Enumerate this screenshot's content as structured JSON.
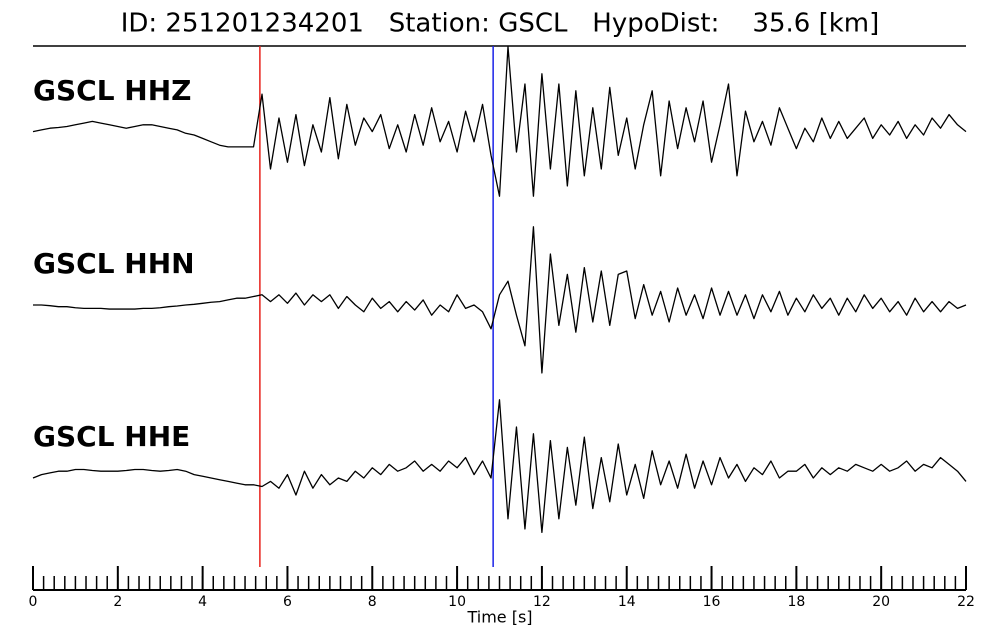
{
  "chart_data": {
    "type": "seismogram",
    "title": "ID: 251201234201   Station: GSCL   HypoDist:    35.6 [km]",
    "xlabel": "Time [s]",
    "xlim": [
      0,
      22
    ],
    "xticks": [
      0,
      2,
      4,
      6,
      8,
      10,
      12,
      14,
      16,
      18,
      20,
      22
    ],
    "xminorticks": [
      0,
      0.25,
      0.5,
      0.75,
      1,
      1.25,
      1.5,
      1.75,
      2,
      2.25,
      2.5,
      2.75,
      3,
      3.25,
      3.5,
      3.75,
      4,
      4.25,
      4.5,
      4.75,
      5,
      5.25,
      5.5,
      5.75,
      6,
      6.25,
      6.5,
      6.75,
      7,
      7.25,
      7.5,
      7.75,
      8,
      8.25,
      8.5,
      8.75,
      9,
      9.25,
      9.5,
      9.75,
      10,
      10.25,
      10.5,
      10.75,
      11,
      11.25,
      11.5,
      11.75,
      12,
      12.25,
      12.5,
      12.75,
      13,
      13.25,
      13.5,
      13.75,
      14,
      14.25,
      14.5,
      14.75,
      15,
      15.25,
      15.5,
      15.75,
      16,
      16.25,
      16.5,
      16.75,
      17,
      17.25,
      17.5,
      17.75,
      18,
      18.25,
      18.5,
      18.75,
      19,
      19.25,
      19.5,
      19.75,
      20,
      20.25,
      20.5,
      20.75,
      21,
      21.25,
      21.5,
      21.75,
      22
    ],
    "ylim": [
      -2.5,
      2.5
    ],
    "picks": [
      {
        "time": 5.35,
        "color": "#e8221b"
      },
      {
        "time": 10.85,
        "color": "#1b22e8"
      }
    ],
    "label_color": "#4a9a08",
    "x": [
      0,
      0.2,
      0.4,
      0.6,
      0.8,
      1,
      1.2,
      1.4,
      1.6,
      1.8,
      2,
      2.2,
      2.4,
      2.6,
      2.8,
      3,
      3.2,
      3.4,
      3.6,
      3.8,
      4,
      4.2,
      4.4,
      4.6,
      4.8,
      5,
      5.2,
      5.4,
      5.6,
      5.8,
      6,
      6.2,
      6.4,
      6.6,
      6.8,
      7,
      7.2,
      7.4,
      7.6,
      7.8,
      8,
      8.2,
      8.4,
      8.6,
      8.8,
      9,
      9.2,
      9.4,
      9.6,
      9.8,
      10,
      10.2,
      10.4,
      10.6,
      10.8,
      11,
      11.2,
      11.4,
      11.6,
      11.8,
      12,
      12.2,
      12.4,
      12.6,
      12.8,
      13,
      13.2,
      13.4,
      13.6,
      13.8,
      14,
      14.2,
      14.4,
      14.6,
      14.8,
      15,
      15.2,
      15.4,
      15.6,
      15.8,
      16,
      16.2,
      16.4,
      16.6,
      16.8,
      17,
      17.2,
      17.4,
      17.6,
      17.8,
      18,
      18.2,
      18.4,
      18.6,
      18.8,
      19,
      19.2,
      19.4,
      19.6,
      19.8,
      20,
      20.2,
      20.4,
      20.6,
      20.8,
      21,
      21.2,
      21.4,
      21.6,
      21.8,
      22
    ],
    "series": [
      {
        "name": "GSCL HHZ",
        "color": "#000000",
        "values": [
          0.1,
          0.15,
          0.2,
          0.22,
          0.25,
          0.3,
          0.35,
          0.4,
          0.35,
          0.3,
          0.25,
          0.2,
          0.25,
          0.3,
          0.3,
          0.25,
          0.2,
          0.15,
          0.05,
          0,
          -0.1,
          -0.2,
          -0.3,
          -0.35,
          -0.35,
          -0.35,
          -0.35,
          1.2,
          -1.0,
          0.5,
          -0.8,
          0.6,
          -0.9,
          0.3,
          -0.5,
          1.1,
          -0.7,
          0.9,
          -0.3,
          0.5,
          0.1,
          0.6,
          -0.4,
          0.3,
          -0.5,
          0.6,
          -0.3,
          0.8,
          -0.2,
          0.4,
          -0.5,
          0.7,
          -0.2,
          0.9,
          -0.6,
          -1.8,
          2.6,
          -0.5,
          1.5,
          -1.8,
          1.8,
          -1.0,
          1.5,
          -1.5,
          1.3,
          -1.2,
          0.8,
          -1.0,
          1.4,
          -0.6,
          0.5,
          -1.0,
          0.3,
          1.3,
          -1.2,
          1.0,
          -0.4,
          0.8,
          -0.2,
          1.0,
          -0.8,
          0.3,
          1.5,
          -1.2,
          0.7,
          -0.2,
          0.4,
          -0.3,
          0.8,
          0.2,
          -0.4,
          0.2,
          -0.2,
          0.5,
          -0.1,
          0.4,
          -0.1,
          0.2,
          0.5,
          -0.1,
          0.3,
          0,
          0.4,
          -0.1,
          0.3,
          0,
          0.5,
          0.2,
          0.6,
          0.3,
          0.1
        ]
      },
      {
        "name": "GSCL HHN",
        "color": "#000000",
        "values": [
          0,
          0,
          -0.02,
          -0.05,
          -0.05,
          -0.08,
          -0.1,
          -0.1,
          -0.1,
          -0.12,
          -0.12,
          -0.12,
          -0.12,
          -0.1,
          -0.1,
          -0.08,
          -0.05,
          -0.03,
          0,
          0.02,
          0.05,
          0.08,
          0.1,
          0.15,
          0.2,
          0.2,
          0.25,
          0.3,
          0.1,
          0.3,
          0.05,
          0.35,
          0,
          0.3,
          0.1,
          0.3,
          -0.1,
          0.25,
          0,
          -0.2,
          0.2,
          -0.1,
          0.1,
          -0.2,
          0.1,
          -0.15,
          0.15,
          -0.3,
          0,
          -0.2,
          0.3,
          -0.1,
          0,
          -0.2,
          -0.7,
          0.3,
          0.7,
          -0.3,
          -1.2,
          2.3,
          -2.0,
          1.5,
          -0.6,
          0.9,
          -0.8,
          1.1,
          -0.5,
          1.0,
          -0.6,
          0.9,
          1.0,
          -0.4,
          0.6,
          -0.3,
          0.4,
          -0.5,
          0.5,
          -0.3,
          0.3,
          -0.4,
          0.5,
          -0.3,
          0.4,
          -0.3,
          0.3,
          -0.4,
          0.3,
          -0.2,
          0.4,
          -0.3,
          0.2,
          -0.2,
          0.3,
          -0.1,
          0.2,
          -0.3,
          0.2,
          -0.2,
          0.3,
          -0.1,
          0.2,
          -0.2,
          0.1,
          -0.3,
          0.2,
          -0.2,
          0.1,
          -0.2,
          0.1,
          -0.1,
          0
        ]
      },
      {
        "name": "GSCL HHE",
        "color": "#000000",
        "values": [
          0,
          0.1,
          0.15,
          0.2,
          0.2,
          0.25,
          0.25,
          0.22,
          0.2,
          0.2,
          0.2,
          0.22,
          0.25,
          0.25,
          0.22,
          0.2,
          0.22,
          0.25,
          0.2,
          0.1,
          0.05,
          0,
          -0.05,
          -0.1,
          -0.15,
          -0.2,
          -0.2,
          -0.25,
          -0.1,
          -0.3,
          0.1,
          -0.5,
          0.2,
          -0.3,
          0.1,
          -0.2,
          0,
          -0.1,
          0.2,
          0,
          0.3,
          0.1,
          0.4,
          0.2,
          0.3,
          0.5,
          0.2,
          0.4,
          0.2,
          0.5,
          0.3,
          0.6,
          0.1,
          0.5,
          0,
          2.3,
          -1.2,
          1.5,
          -1.5,
          1.3,
          -1.6,
          1.1,
          -1.2,
          0.9,
          -0.8,
          1.2,
          -0.9,
          0.6,
          -0.7,
          1.0,
          -0.5,
          0.4,
          -0.6,
          0.8,
          -0.2,
          0.5,
          -0.3,
          0.7,
          -0.3,
          0.5,
          -0.2,
          0.6,
          0,
          0.4,
          -0.1,
          0.3,
          0.1,
          0.5,
          0,
          0.2,
          0.2,
          0.4,
          0,
          0.3,
          0.1,
          0.3,
          0.2,
          0.4,
          0.3,
          0.2,
          0.4,
          0.2,
          0.3,
          0.5,
          0.2,
          0.4,
          0.3,
          0.6,
          0.4,
          0.2,
          -0.1
        ]
      }
    ]
  }
}
